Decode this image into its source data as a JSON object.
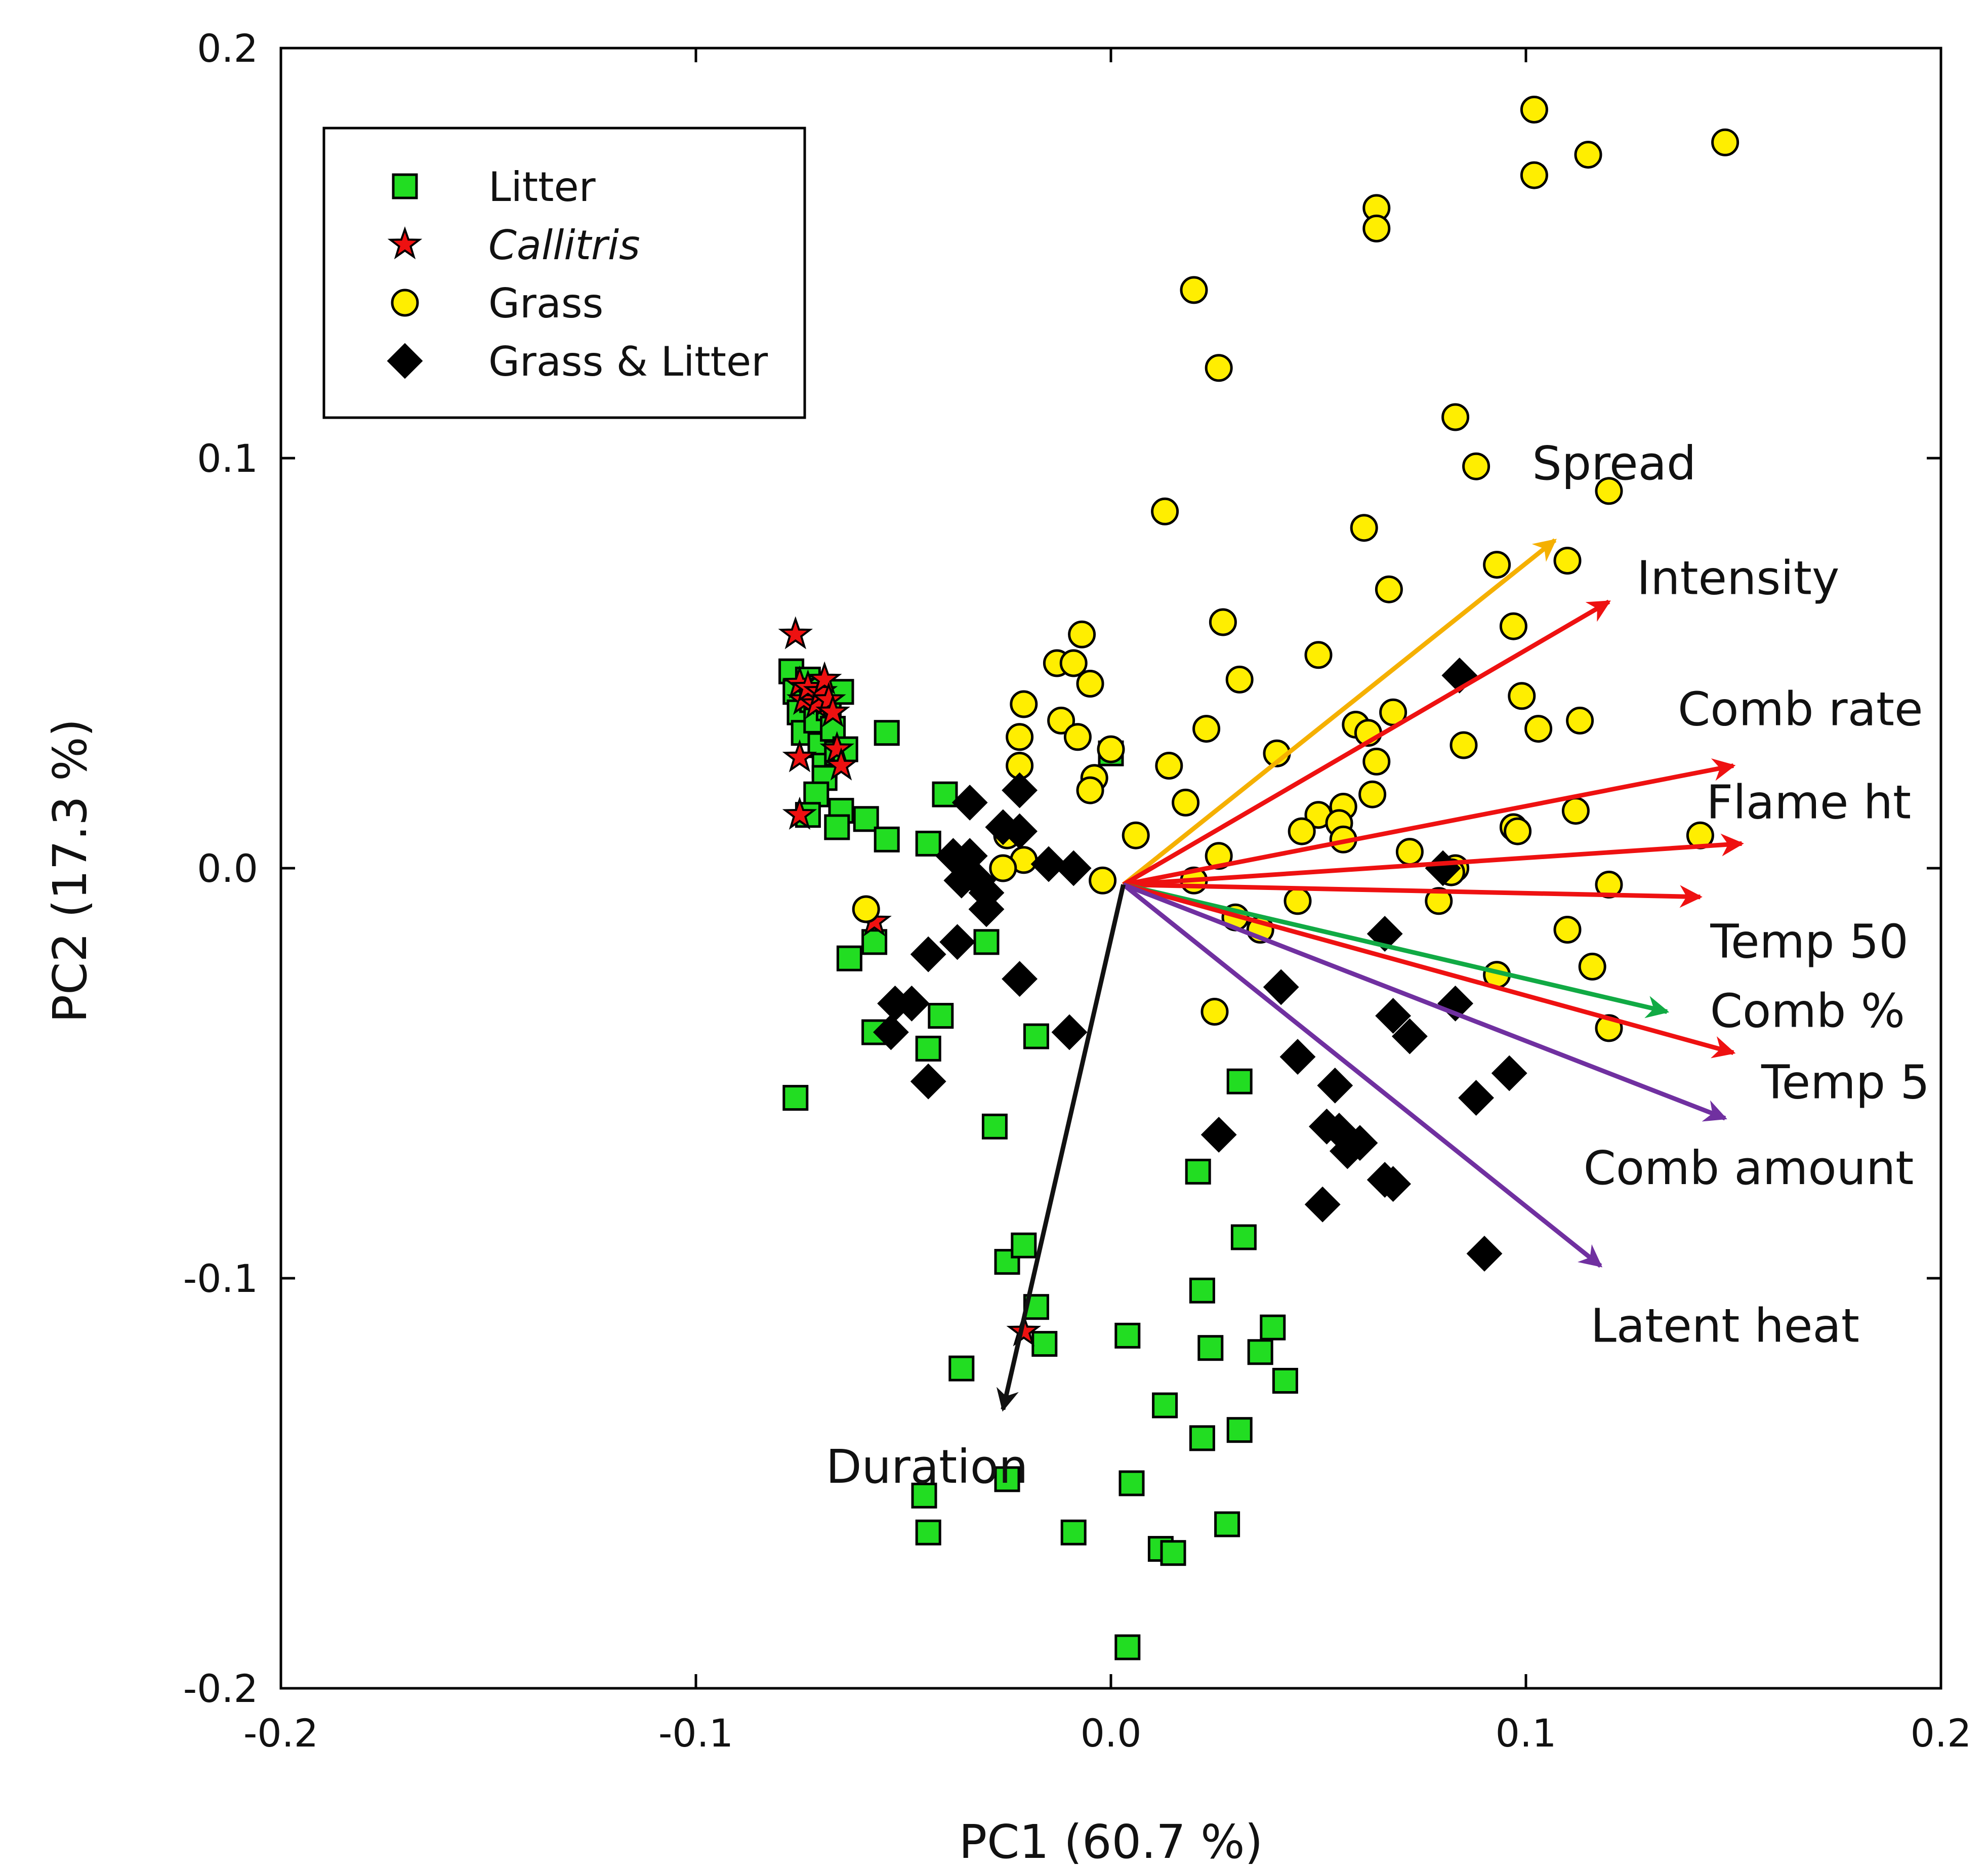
{
  "chart_data": {
    "type": "scatter",
    "title": "",
    "xlabel": "PC1 (60.7 %)",
    "ylabel": "PC2 (17.3 %)",
    "xlim": [
      -0.2,
      0.2
    ],
    "ylim": [
      -0.2,
      0.2
    ],
    "xticks": [
      "-0.2",
      "-0.1",
      "0.0",
      "0.1",
      "0.2"
    ],
    "yticks": [
      "0.2",
      "0.1",
      "0.0",
      "-0.1",
      "-0.2"
    ],
    "grid": false,
    "legend_position": "top-left",
    "series": [
      {
        "name": "Litter",
        "marker": "square",
        "color": "#22dd22",
        "points": [
          [
            -0.077,
            0.048
          ],
          [
            -0.076,
            0.043
          ],
          [
            -0.075,
            0.038
          ],
          [
            -0.074,
            0.033
          ],
          [
            -0.073,
            0.046
          ],
          [
            -0.072,
            0.041
          ],
          [
            -0.071,
            0.036
          ],
          [
            -0.07,
            0.044
          ],
          [
            -0.07,
            0.03
          ],
          [
            -0.069,
            0.025
          ],
          [
            -0.068,
            0.039
          ],
          [
            -0.067,
            0.034
          ],
          [
            -0.066,
            0.028
          ],
          [
            -0.065,
            0.043
          ],
          [
            -0.064,
            0.029
          ],
          [
            -0.069,
            0.022
          ],
          [
            -0.071,
            0.018
          ],
          [
            -0.073,
            0.013
          ],
          [
            -0.065,
            0.014
          ],
          [
            -0.059,
            0.012
          ],
          [
            -0.054,
            0.033
          ],
          [
            -0.054,
            0.007
          ],
          [
            -0.066,
            0.01
          ],
          [
            -0.044,
            0.006
          ],
          [
            -0.04,
            0.018
          ],
          [
            -0.063,
            -0.022
          ],
          [
            -0.057,
            -0.018
          ],
          [
            -0.057,
            -0.04
          ],
          [
            -0.041,
            -0.036
          ],
          [
            -0.044,
            -0.044
          ],
          [
            -0.076,
            -0.056
          ],
          [
            -0.03,
            -0.018
          ],
          [
            -0.018,
            -0.041
          ],
          [
            -0.028,
            -0.063
          ],
          [
            -0.025,
            -0.096
          ],
          [
            -0.021,
            -0.092
          ],
          [
            -0.018,
            -0.107
          ],
          [
            -0.016,
            -0.116
          ],
          [
            -0.036,
            -0.122
          ],
          [
            -0.045,
            -0.153
          ],
          [
            -0.044,
            -0.162
          ],
          [
            -0.025,
            -0.149
          ],
          [
            -0.009,
            -0.162
          ],
          [
            0.005,
            -0.15
          ],
          [
            0.013,
            -0.131
          ],
          [
            0.012,
            -0.166
          ],
          [
            0.015,
            -0.167
          ],
          [
            0.004,
            -0.114
          ],
          [
            0.021,
            -0.074
          ],
          [
            0.022,
            -0.103
          ],
          [
            0.024,
            -0.117
          ],
          [
            0.022,
            -0.139
          ],
          [
            0.031,
            -0.137
          ],
          [
            0.028,
            -0.16
          ],
          [
            0.032,
            -0.09
          ],
          [
            0.031,
            -0.052
          ],
          [
            0.036,
            -0.118
          ],
          [
            0.039,
            -0.112
          ],
          [
            0.042,
            -0.125
          ],
          [
            0.004,
            -0.19
          ],
          [
            0.0,
            0.028
          ]
        ]
      },
      {
        "name": "Callitris",
        "marker": "star",
        "color": "#ee1111",
        "points": [
          [
            -0.076,
            0.057
          ],
          [
            -0.075,
            0.045
          ],
          [
            -0.074,
            0.041
          ],
          [
            -0.073,
            0.044
          ],
          [
            -0.071,
            0.04
          ],
          [
            -0.07,
            0.043
          ],
          [
            -0.069,
            0.046
          ],
          [
            -0.068,
            0.041
          ],
          [
            -0.067,
            0.038
          ],
          [
            -0.066,
            0.029
          ],
          [
            -0.065,
            0.025
          ],
          [
            -0.075,
            0.027
          ],
          [
            -0.075,
            0.013
          ],
          [
            -0.057,
            -0.013
          ],
          [
            -0.021,
            -0.113
          ]
        ]
      },
      {
        "name": "Grass",
        "marker": "circle",
        "color": "#ffee00",
        "points": [
          [
            0.102,
            0.185
          ],
          [
            0.102,
            0.169
          ],
          [
            0.115,
            0.174
          ],
          [
            0.148,
            0.177
          ],
          [
            0.064,
            0.161
          ],
          [
            0.064,
            0.156
          ],
          [
            0.02,
            0.141
          ],
          [
            0.026,
            0.122
          ],
          [
            0.083,
            0.11
          ],
          [
            0.088,
            0.098
          ],
          [
            0.12,
            0.092
          ],
          [
            0.013,
            0.087
          ],
          [
            0.061,
            0.083
          ],
          [
            0.093,
            0.074
          ],
          [
            0.11,
            0.075
          ],
          [
            0.067,
            0.068
          ],
          [
            0.027,
            0.06
          ],
          [
            0.05,
            0.052
          ],
          [
            0.097,
            0.059
          ],
          [
            -0.007,
            0.057
          ],
          [
            -0.013,
            0.05
          ],
          [
            -0.009,
            0.05
          ],
          [
            -0.005,
            0.045
          ],
          [
            0.031,
            0.046
          ],
          [
            -0.021,
            0.04
          ],
          [
            -0.012,
            0.036
          ],
          [
            0.059,
            0.035
          ],
          [
            0.068,
            0.038
          ],
          [
            0.062,
            0.033
          ],
          [
            0.099,
            0.042
          ],
          [
            0.113,
            0.036
          ],
          [
            0.103,
            0.034
          ],
          [
            0.085,
            0.03
          ],
          [
            0.023,
            0.034
          ],
          [
            -0.022,
            0.032
          ],
          [
            -0.008,
            0.032
          ],
          [
            0.0,
            0.029
          ],
          [
            0.04,
            0.028
          ],
          [
            -0.022,
            0.025
          ],
          [
            0.014,
            0.025
          ],
          [
            0.064,
            0.026
          ],
          [
            -0.004,
            0.022
          ],
          [
            -0.005,
            0.019
          ],
          [
            0.018,
            0.016
          ],
          [
            0.063,
            0.018
          ],
          [
            0.112,
            0.014
          ],
          [
            0.05,
            0.013
          ],
          [
            0.056,
            0.015
          ],
          [
            0.055,
            0.011
          ],
          [
            0.046,
            0.009
          ],
          [
            0.097,
            0.01
          ],
          [
            0.098,
            0.009
          ],
          [
            0.142,
            0.008
          ],
          [
            0.006,
            0.008
          ],
          [
            0.056,
            0.007
          ],
          [
            -0.025,
            0.008
          ],
          [
            -0.021,
            0.002
          ],
          [
            0.026,
            0.003
          ],
          [
            -0.026,
            0.0
          ],
          [
            0.072,
            0.004
          ],
          [
            0.083,
            0.0
          ],
          [
            0.082,
            -0.001
          ],
          [
            0.12,
            -0.004
          ],
          [
            -0.002,
            -0.003
          ],
          [
            0.02,
            -0.003
          ],
          [
            -0.059,
            -0.01
          ],
          [
            0.03,
            -0.012
          ],
          [
            0.036,
            -0.015
          ],
          [
            0.045,
            -0.008
          ],
          [
            0.079,
            -0.008
          ],
          [
            0.11,
            -0.015
          ],
          [
            0.116,
            -0.024
          ],
          [
            0.093,
            -0.026
          ],
          [
            0.12,
            -0.039
          ],
          [
            0.025,
            -0.035
          ]
        ]
      },
      {
        "name": "Grass & Litter",
        "marker": "diamond",
        "color": "#000000",
        "points": [
          [
            0.084,
            0.047
          ],
          [
            -0.034,
            0.016
          ],
          [
            -0.022,
            0.019
          ],
          [
            -0.026,
            0.01
          ],
          [
            -0.022,
            0.009
          ],
          [
            -0.038,
            0.003
          ],
          [
            -0.034,
            0.003
          ],
          [
            -0.036,
            -0.003
          ],
          [
            -0.032,
            -0.003
          ],
          [
            -0.03,
            -0.006
          ],
          [
            -0.03,
            -0.01
          ],
          [
            -0.015,
            0.001
          ],
          [
            -0.009,
            0.0
          ],
          [
            0.08,
            0.0
          ],
          [
            -0.044,
            -0.021
          ],
          [
            -0.037,
            -0.018
          ],
          [
            -0.022,
            -0.027
          ],
          [
            -0.052,
            -0.033
          ],
          [
            -0.048,
            -0.033
          ],
          [
            -0.053,
            -0.04
          ],
          [
            -0.044,
            -0.052
          ],
          [
            -0.01,
            -0.04
          ],
          [
            0.066,
            -0.016
          ],
          [
            0.041,
            -0.029
          ],
          [
            0.068,
            -0.036
          ],
          [
            0.072,
            -0.041
          ],
          [
            0.083,
            -0.033
          ],
          [
            0.045,
            -0.046
          ],
          [
            0.054,
            -0.053
          ],
          [
            0.052,
            -0.063
          ],
          [
            0.055,
            -0.064
          ],
          [
            0.057,
            -0.069
          ],
          [
            0.06,
            -0.067
          ],
          [
            0.026,
            -0.065
          ],
          [
            0.066,
            -0.076
          ],
          [
            0.068,
            -0.077
          ],
          [
            0.051,
            -0.082
          ],
          [
            0.088,
            -0.056
          ],
          [
            0.096,
            -0.05
          ],
          [
            0.09,
            -0.094
          ]
        ]
      }
    ],
    "vectors": [
      {
        "label": "Spread",
        "color": "#f5b000",
        "start": [
          0.003,
          -0.004
        ],
        "end": [
          0.107,
          0.08
        ]
      },
      {
        "label": "Intensity",
        "color": "#ee1111",
        "start": [
          0.003,
          -0.004
        ],
        "end": [
          0.12,
          0.065
        ]
      },
      {
        "label": "Comb rate",
        "color": "#ee1111",
        "start": [
          0.003,
          -0.004
        ],
        "end": [
          0.15,
          0.025
        ]
      },
      {
        "label": "Flame ht",
        "color": "#ee1111",
        "start": [
          0.003,
          -0.004
        ],
        "end": [
          0.152,
          0.006
        ]
      },
      {
        "label": "Temp 50",
        "color": "#ee1111",
        "start": [
          0.003,
          -0.004
        ],
        "end": [
          0.142,
          -0.007
        ]
      },
      {
        "label": "Comb %",
        "color": "#11aa44",
        "start": [
          0.003,
          -0.004
        ],
        "end": [
          0.134,
          -0.035
        ]
      },
      {
        "label": "Temp 5",
        "color": "#ee1111",
        "start": [
          0.003,
          -0.004
        ],
        "end": [
          0.15,
          -0.045
        ]
      },
      {
        "label": "Comb amount",
        "color": "#7030a0",
        "start": [
          0.003,
          -0.004
        ],
        "end": [
          0.148,
          -0.061
        ]
      },
      {
        "label": "Latent heat",
        "color": "#7030a0",
        "start": [
          0.003,
          -0.004
        ],
        "end": [
          0.118,
          -0.097
        ]
      },
      {
        "label": "Duration",
        "color": "#111111",
        "start": [
          0.003,
          -0.004
        ],
        "end": [
          -0.026,
          -0.132
        ]
      }
    ]
  }
}
